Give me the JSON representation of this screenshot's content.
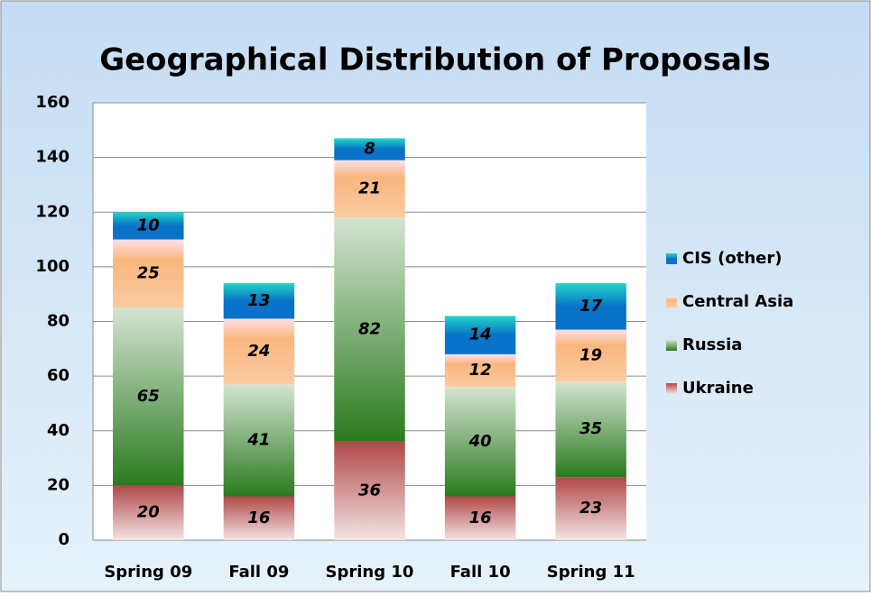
{
  "chart_data": {
    "type": "stacked_bar",
    "title": "Geographical Distribution of Proposals",
    "categories": [
      "Spring 09",
      "Fall 09",
      "Spring 10",
      "Fall 10",
      "Spring 11"
    ],
    "series": [
      {
        "name": "Ukraine",
        "color": "#b04848",
        "values": [
          20,
          16,
          36,
          16,
          23
        ]
      },
      {
        "name": "Russia",
        "color": "#2a7a1e",
        "values": [
          65,
          41,
          82,
          40,
          35
        ]
      },
      {
        "name": "Central Asia",
        "color": "#f79646",
        "values": [
          25,
          24,
          21,
          12,
          19
        ]
      },
      {
        "name": "CIS (other)",
        "color": "#0a72c8",
        "values": [
          10,
          13,
          8,
          14,
          17
        ]
      }
    ],
    "ylim": [
      0,
      160
    ],
    "yticks": [
      0,
      20,
      40,
      60,
      80,
      100,
      120,
      140,
      160
    ],
    "grid": true,
    "legend": "right"
  }
}
